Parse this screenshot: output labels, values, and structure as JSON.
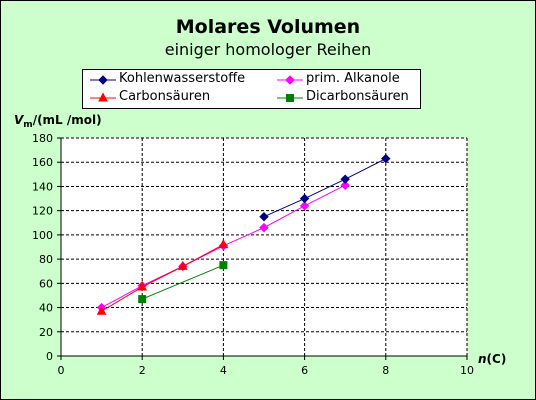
{
  "chart_data": {
    "type": "line",
    "title": "Molares Volumen",
    "subtitle": "einiger homologer Reihen",
    "ylabel": {
      "symbol": "V",
      "sub": "m",
      "rest": "/(mL /mol)"
    },
    "xlabel": {
      "symbol": "n",
      "rest": "(C)"
    },
    "xlim": [
      0,
      10
    ],
    "ylim": [
      0,
      180
    ],
    "xticks": [
      0,
      2,
      4,
      6,
      8,
      10
    ],
    "yticks": [
      0,
      20,
      40,
      60,
      80,
      100,
      120,
      140,
      160,
      180
    ],
    "grid": true,
    "legend_position": "top",
    "plot_background": "#ffffff",
    "chart_background": "#ccffcc",
    "series": [
      {
        "name": "Kohlenwasserstoffe",
        "color": "#000080",
        "marker": "diamond",
        "x": [
          5,
          6,
          7,
          8
        ],
        "y": [
          115,
          130,
          146,
          163
        ]
      },
      {
        "name": "prim. Alkanole",
        "color": "#ff00ff",
        "marker": "diamond",
        "x": [
          1,
          2,
          3,
          4,
          5,
          6,
          7
        ],
        "y": [
          40,
          58,
          74,
          91,
          106,
          124,
          141
        ]
      },
      {
        "name": "Carbonsäuren",
        "color": "#ff0000",
        "marker": "triangle",
        "x": [
          1,
          2,
          3,
          4
        ],
        "y": [
          37,
          57,
          74,
          92
        ]
      },
      {
        "name": "Dicarbonsäuren",
        "color": "#008000",
        "marker": "square",
        "x": [
          2,
          4
        ],
        "y": [
          47,
          75
        ]
      }
    ]
  }
}
